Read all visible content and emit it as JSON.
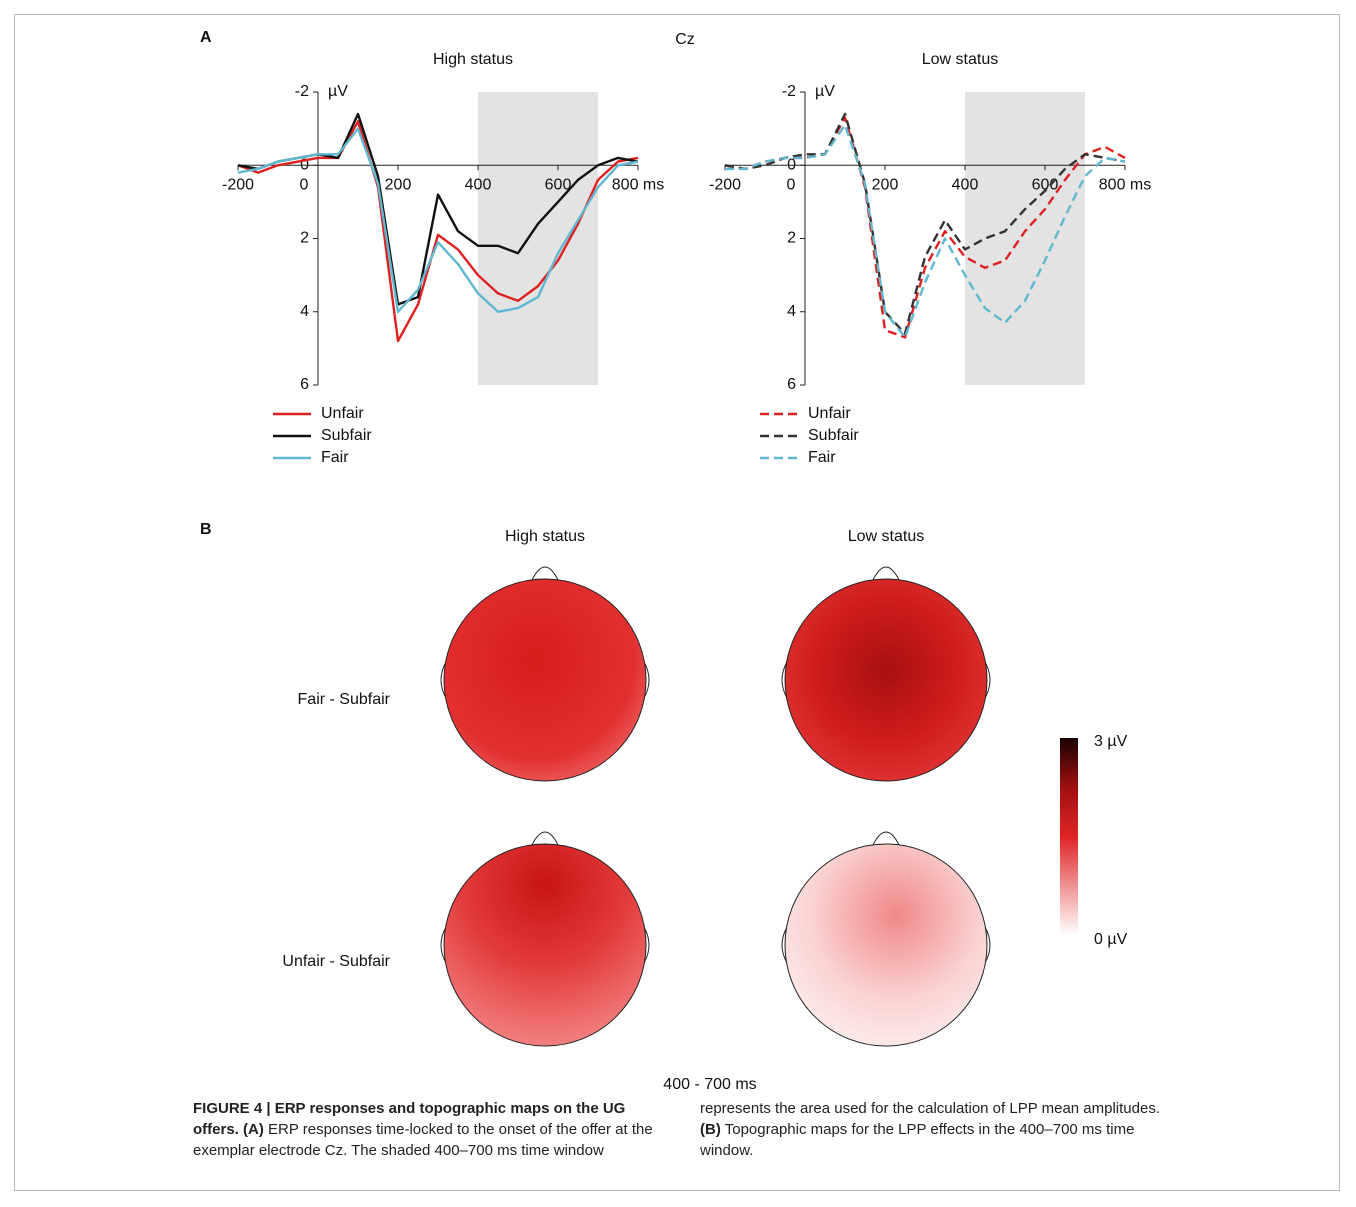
{
  "panel_a": {
    "label": "A",
    "title": "Cz"
  },
  "chart_data": [
    {
      "type": "line",
      "title": "High status",
      "y_label": "µV",
      "y_inverted": true,
      "x": [
        -200,
        -150,
        -100,
        -50,
        0,
        50,
        100,
        150,
        200,
        250,
        300,
        350,
        400,
        450,
        500,
        550,
        600,
        650,
        700,
        750,
        800
      ],
      "xlim": [
        -200,
        800
      ],
      "xticks": [
        -200,
        0,
        200,
        400,
        600,
        {
          "value": 800,
          "label": "800 ms"
        }
      ],
      "ylim": [
        -2,
        6
      ],
      "yticks": [
        -2,
        0,
        2,
        4,
        6
      ],
      "shaded_window": [
        400,
        700
      ],
      "series": [
        {
          "name": "Unfair",
          "color": "#e02020",
          "dashed": false,
          "values": [
            0,
            0.2,
            0,
            -0.1,
            -0.2,
            -0.2,
            -1.2,
            0.6,
            4.8,
            3.8,
            1.9,
            2.3,
            3.0,
            3.5,
            3.7,
            3.3,
            2.6,
            1.6,
            0.4,
            -0.1,
            -0.2
          ]
        },
        {
          "name": "Subfair",
          "color": "#111111",
          "dashed": false,
          "values": [
            0,
            0.1,
            -0.1,
            -0.2,
            -0.3,
            -0.2,
            -1.4,
            0.3,
            3.8,
            3.6,
            0.8,
            1.8,
            2.2,
            2.2,
            2.4,
            1.6,
            1.0,
            0.4,
            0,
            -0.2,
            -0.1
          ]
        },
        {
          "name": "Fair",
          "color": "#5fb8d0",
          "dashed": false,
          "values": [
            0.2,
            0.1,
            -0.1,
            -0.2,
            -0.3,
            -0.3,
            -1.0,
            0.5,
            4.0,
            3.4,
            2.1,
            2.7,
            3.5,
            4.0,
            3.9,
            3.6,
            2.4,
            1.5,
            0.6,
            0,
            -0.1
          ]
        }
      ]
    },
    {
      "type": "line",
      "title": "Low status",
      "y_label": "µV",
      "y_inverted": true,
      "x": [
        -200,
        -150,
        -100,
        -50,
        0,
        50,
        100,
        150,
        200,
        250,
        300,
        350,
        400,
        450,
        500,
        550,
        600,
        650,
        700,
        750,
        800
      ],
      "xlim": [
        -200,
        800
      ],
      "xticks": [
        -200,
        0,
        200,
        400,
        600,
        {
          "value": 800,
          "label": "800 ms"
        }
      ],
      "ylim": [
        -2,
        6
      ],
      "yticks": [
        -2,
        0,
        2,
        4,
        6
      ],
      "shaded_window": [
        400,
        700
      ],
      "series": [
        {
          "name": "Unfair",
          "color": "#e02020",
          "dashed": true,
          "values": [
            0,
            0.1,
            -0.1,
            -0.2,
            -0.2,
            -0.3,
            -1.3,
            0.6,
            4.5,
            4.7,
            2.8,
            1.8,
            2.5,
            2.8,
            2.6,
            1.8,
            1.2,
            0.4,
            -0.3,
            -0.5,
            -0.2
          ]
        },
        {
          "name": "Subfair",
          "color": "#333333",
          "dashed": true,
          "values": [
            0,
            0.1,
            0,
            -0.2,
            -0.3,
            -0.3,
            -1.4,
            0.5,
            4.0,
            4.6,
            2.5,
            1.5,
            2.3,
            2.0,
            1.8,
            1.2,
            0.7,
            0.1,
            -0.3,
            -0.2,
            -0.1
          ]
        },
        {
          "name": "Fair",
          "color": "#5fb8d0",
          "dashed": true,
          "values": [
            0.1,
            0.1,
            -0.1,
            -0.2,
            -0.2,
            -0.3,
            -1.1,
            0.5,
            4.0,
            4.7,
            3.2,
            2.0,
            3.0,
            3.9,
            4.3,
            3.7,
            2.6,
            1.4,
            0.3,
            -0.2,
            -0.1
          ]
        }
      ]
    }
  ],
  "panel_b": {
    "label": "B",
    "columns": [
      "High status",
      "Low status"
    ],
    "rows": [
      "Fair - Subfair",
      "Unfair - Subfair"
    ],
    "colorbar": {
      "max_label": "3 µV",
      "min_label": "0 µV"
    },
    "time_window": "400 - 700 ms"
  },
  "caption": {
    "title": "FIGURE 4 | ERP responses and topographic maps on the UG offers.",
    "a_label": "(A)",
    "a_text": "ERP responses time-locked to the onset of the offer at the exemplar electrode Cz. The shaded 400–700 ms time window represents the area used for the calculation of LPP mean amplitudes.",
    "b_label": "(B)",
    "b_text": "Topographic maps for the LPP effects in the 400–700 ms time window."
  }
}
